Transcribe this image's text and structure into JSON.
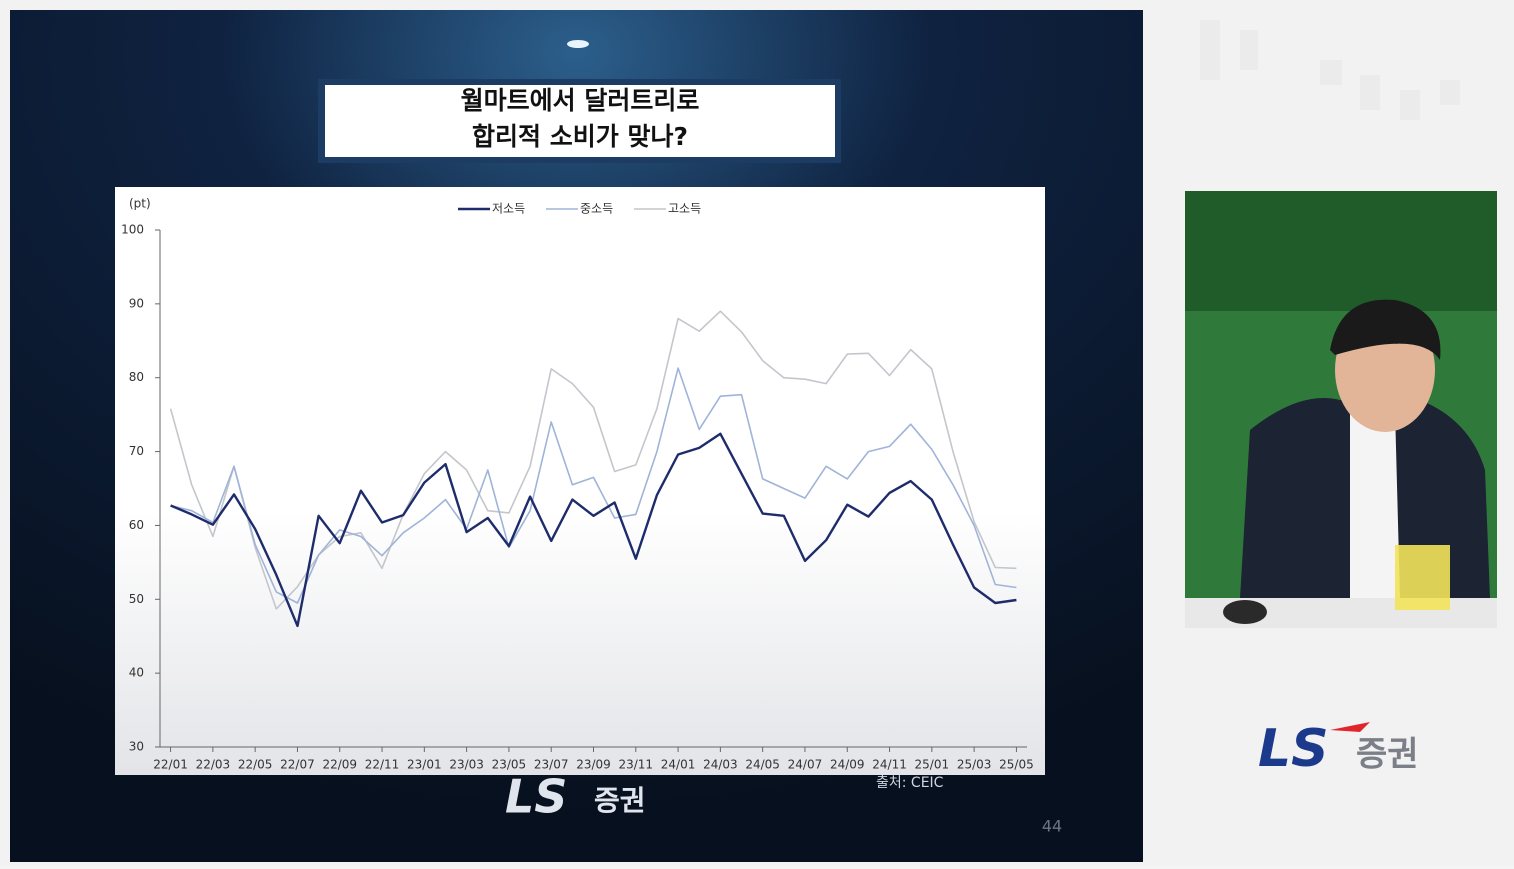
{
  "slide": {
    "title": [
      "월마트에서 달러트리로",
      "합리적 소비가 맞나?"
    ],
    "source": "출처: CEIC",
    "page_number": "44",
    "logo_mark": "LS",
    "logo_text": "증권"
  },
  "sidebar": {
    "logo_mark": "LS",
    "logo_text": "증권"
  },
  "chart_data": {
    "type": "line",
    "y_label": "(pt)",
    "categories": [
      "22/01",
      null,
      "22/03",
      null,
      "22/05",
      null,
      "22/07",
      null,
      "22/09",
      null,
      "22/11",
      null,
      "23/01",
      null,
      "23/03",
      null,
      "23/05",
      null,
      "23/07",
      null,
      "23/09",
      null,
      "23/11",
      null,
      "24/01",
      null,
      "24/03",
      null,
      "24/05",
      null,
      "24/07",
      null,
      "24/09",
      null,
      "24/11",
      null,
      "25/01",
      null,
      "25/03",
      null,
      "25/05"
    ],
    "series": [
      {
        "name": "저소득",
        "color": "#1e2c6b",
        "width": 2.4,
        "values": [
          62.7,
          61.5,
          60.1,
          64.2,
          59.5,
          53.3,
          46.4,
          61.3,
          57.6,
          64.7,
          60.4,
          61.4,
          65.8,
          68.3,
          59.1,
          61,
          57.2,
          63.9,
          57.9,
          63.5,
          61.3,
          63.1,
          55.5,
          64.1,
          69.6,
          70.5,
          72.4,
          67,
          61.6,
          61.3,
          55.2,
          58,
          62.8,
          61.2,
          64.4,
          66,
          63.5,
          57.4,
          51.6,
          49.5,
          49.9
        ]
      },
      {
        "name": "중소득",
        "color": "#9fb4d8",
        "width": 1.6,
        "values": [
          62.7,
          62,
          60.4,
          68,
          57.4,
          51,
          49.5,
          56,
          59.4,
          58.5,
          55.9,
          59,
          61,
          63.5,
          59.5,
          67.5,
          57,
          62,
          74,
          65.5,
          66.5,
          61,
          61.5,
          70,
          81.3,
          73,
          77.5,
          77.7,
          66.3,
          65,
          63.7,
          68,
          66.3,
          70,
          70.7,
          73.7,
          70.3,
          65.5,
          60,
          52,
          51.6
        ]
      },
      {
        "name": "고소득",
        "color": "#c4c6cc",
        "width": 1.6,
        "values": [
          75.8,
          65.5,
          58.5,
          68,
          57,
          48.7,
          51.7,
          56,
          58.5,
          59,
          54.2,
          61.5,
          67,
          70,
          67.5,
          62,
          61.7,
          68,
          81.2,
          79.2,
          76,
          67.3,
          68.2,
          75.8,
          88,
          86.3,
          89,
          86.2,
          82.3,
          80,
          79.8,
          79.2,
          83.2,
          83.3,
          80.3,
          83.8,
          81.2,
          70,
          60.5,
          54.3,
          54.2
        ]
      }
    ],
    "ylim": [
      30,
      100
    ],
    "yticks": [
      30,
      40,
      50,
      60,
      70,
      80,
      90,
      100
    ]
  }
}
